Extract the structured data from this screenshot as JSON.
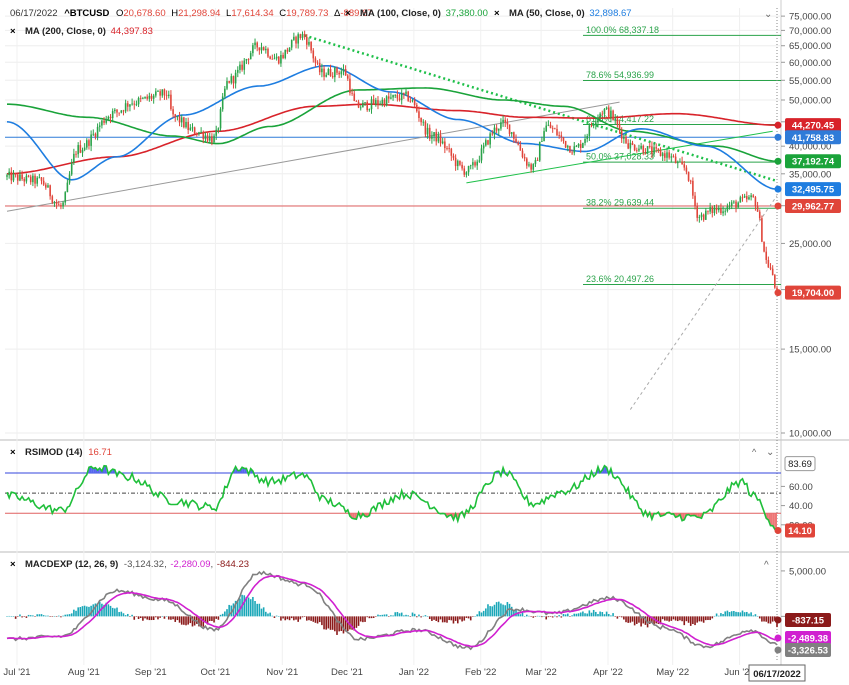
{
  "header": {
    "date": "06/17/2022",
    "symbol": "^BTCUSD",
    "open_label": "O",
    "open": "20,678.60",
    "high_label": "H",
    "high": "21,298.94",
    "low_label": "L",
    "low": "17,614.34",
    "close_label": "C",
    "close": "19,789.73",
    "change_label": "Δ",
    "change": "-889.67",
    "ma100_label": "MA (100, Close, 0)",
    "ma100_value": "37,380.00",
    "ma50_label": "MA (50, Close, 0)",
    "ma50_value": "32,898.67",
    "ma200_label": "MA (200, Close, 0)",
    "ma200_value": "44,397.83"
  },
  "colors": {
    "up": "#2aa34a",
    "down": "#e0453a",
    "ma200": "#d8232a",
    "ma100": "#1aa33a",
    "ma50": "#1e7de0",
    "fib": "#2aa34a",
    "trend": "#1fc04a",
    "rsi": "#1fbf3a",
    "macd_line": "#808080",
    "signal_line": "#d020d0",
    "hist_up": "#1aa7b8",
    "hist_down": "#8b1a1a",
    "hline_blue": "#2f7bd8",
    "hline_red": "#e06060"
  },
  "price_axis": {
    "ticks": [
      "75,000.00",
      "70,000.00",
      "65,000.00",
      "60,000.00",
      "55,000.00",
      "50,000.00",
      "45,000.00",
      "40,000.00",
      "35,000.00",
      "30,000.00",
      "25,000.00",
      "20,000.00",
      "15,000.00",
      "10,000.00"
    ],
    "tick_values": [
      75000,
      70000,
      65000,
      60000,
      55000,
      50000,
      45000,
      40000,
      35000,
      30000,
      25000,
      20000,
      15000,
      10000
    ],
    "scale": "log"
  },
  "fibonacci": [
    {
      "label": "100.0% 68,337.18",
      "value": 68337.18
    },
    {
      "label": "78.6% 54,936.99",
      "value": 54936.99
    },
    {
      "label": "61.8% 44,417.22",
      "value": 44417.22
    },
    {
      "label": "50.0% 37,028.33",
      "value": 37028.33
    },
    {
      "label": "38.2% 29,639.44",
      "value": 29639.44
    },
    {
      "label": "23.6% 20,497.26",
      "value": 20497.26
    }
  ],
  "price_badges": [
    {
      "text": "44,270.45",
      "value": 44270.45,
      "color": "#d8232a"
    },
    {
      "text": "41,758.83",
      "value": 41758.83,
      "color": "#2f7bd8"
    },
    {
      "text": "37,192.74",
      "value": 37192.74,
      "color": "#1aa33a"
    },
    {
      "text": "32,495.75",
      "value": 32495.75,
      "color": "#1e7de0"
    },
    {
      "text": "29,962.77",
      "value": 29962.77,
      "color": "#e0453a"
    },
    {
      "text": "19,704.00",
      "value": 19704.0,
      "color": "#e0453a"
    }
  ],
  "rsi": {
    "label": "RSIMOD (14)",
    "value": "16.71",
    "ticks": [
      "83.69",
      "60.00",
      "40.00",
      "20.00"
    ],
    "tick_values": [
      83.69,
      60,
      40,
      20
    ],
    "upper": 74,
    "lower": 32,
    "mid": 53,
    "badge": "14.10"
  },
  "macd": {
    "label": "MACDEXP (12, 26, 9)",
    "macd": "-3,124.32",
    "signal": "-2,280.09",
    "hist": "-844.23",
    "ticks": [
      "5,000.00",
      "0.00"
    ],
    "tick_values": [
      5000,
      0
    ],
    "badges": [
      {
        "text": "-837.15",
        "value": -837.15,
        "color": "#8b1a1a"
      },
      {
        "text": "-2,489.38",
        "value": -2489.38,
        "color": "#d020d0"
      },
      {
        "text": "-3,326.53",
        "value": -3326.53,
        "color": "#808080"
      }
    ]
  },
  "time_axis": {
    "labels": [
      "Jul '21",
      "Aug '21",
      "Sep '21",
      "Oct '21",
      "Nov '21",
      "Dec '21",
      "Jan '22",
      "Feb '22",
      "Mar '22",
      "Apr '22",
      "May '22",
      "Jun '22"
    ],
    "positions": [
      0,
      31,
      62,
      92,
      123,
      153,
      184,
      215,
      243,
      274,
      304,
      335
    ],
    "current_date": "06/17/2022",
    "current_index": 351
  },
  "chart_data": {
    "type": "candlestick",
    "title": "^BTCUSD",
    "scale": "log",
    "ylim": [
      10000,
      78000
    ],
    "x_range": [
      "2021-06-25",
      "2022-06-17"
    ],
    "anchors": [
      {
        "date": "2021-06-25",
        "price": 34500
      },
      {
        "date": "2021-07-10",
        "price": 33800
      },
      {
        "date": "2021-07-20",
        "price": 29800
      },
      {
        "date": "2021-07-28",
        "price": 39500
      },
      {
        "date": "2021-08-14",
        "price": 47000
      },
      {
        "date": "2021-08-22",
        "price": 49500
      },
      {
        "date": "2021-09-07",
        "price": 51500
      },
      {
        "date": "2021-09-10",
        "price": 46000
      },
      {
        "date": "2021-09-20",
        "price": 43000
      },
      {
        "date": "2021-09-29",
        "price": 41500
      },
      {
        "date": "2021-10-06",
        "price": 55000
      },
      {
        "date": "2021-10-20",
        "price": 65000
      },
      {
        "date": "2021-10-28",
        "price": 61000
      },
      {
        "date": "2021-11-09",
        "price": 68300
      },
      {
        "date": "2021-11-18",
        "price": 57000
      },
      {
        "date": "2021-11-28",
        "price": 57500
      },
      {
        "date": "2021-12-04",
        "price": 48500
      },
      {
        "date": "2021-12-27",
        "price": 50800
      },
      {
        "date": "2022-01-08",
        "price": 42000
      },
      {
        "date": "2022-01-24",
        "price": 35500
      },
      {
        "date": "2022-02-10",
        "price": 44500
      },
      {
        "date": "2022-02-24",
        "price": 36000
      },
      {
        "date": "2022-03-02",
        "price": 44000
      },
      {
        "date": "2022-03-15",
        "price": 39500
      },
      {
        "date": "2022-03-29",
        "price": 47500
      },
      {
        "date": "2022-04-11",
        "price": 40000
      },
      {
        "date": "2022-04-26",
        "price": 38500
      },
      {
        "date": "2022-05-05",
        "price": 36000
      },
      {
        "date": "2022-05-12",
        "price": 28500
      },
      {
        "date": "2022-05-20",
        "price": 29500
      },
      {
        "date": "2022-06-06",
        "price": 31000
      },
      {
        "date": "2022-06-13",
        "price": 22500
      },
      {
        "date": "2022-06-17",
        "price": 19789.73
      }
    ],
    "ma200_anchors": [
      {
        "date": "2021-06-25",
        "value": 35000
      },
      {
        "date": "2021-08-15",
        "value": 38000
      },
      {
        "date": "2021-10-01",
        "value": 43000
      },
      {
        "date": "2021-11-15",
        "value": 48500
      },
      {
        "date": "2021-12-10",
        "value": 49000
      },
      {
        "date": "2022-01-20",
        "value": 47500
      },
      {
        "date": "2022-02-20",
        "value": 46000
      },
      {
        "date": "2022-03-25",
        "value": 45800
      },
      {
        "date": "2022-05-01",
        "value": 46800
      },
      {
        "date": "2022-06-17",
        "value": 44270
      }
    ],
    "ma100_anchors": [
      {
        "date": "2021-06-25",
        "value": 49000
      },
      {
        "date": "2021-08-01",
        "value": 46000
      },
      {
        "date": "2021-09-10",
        "value": 42000
      },
      {
        "date": "2021-10-01",
        "value": 40500
      },
      {
        "date": "2021-10-25",
        "value": 44000
      },
      {
        "date": "2021-12-05",
        "value": 52500
      },
      {
        "date": "2022-01-05",
        "value": 53000
      },
      {
        "date": "2022-02-10",
        "value": 50000
      },
      {
        "date": "2022-03-10",
        "value": 48500
      },
      {
        "date": "2022-04-10",
        "value": 43000
      },
      {
        "date": "2022-05-20",
        "value": 40000
      },
      {
        "date": "2022-06-17",
        "value": 37192
      }
    ],
    "ma50_anchors": [
      {
        "date": "2021-06-25",
        "value": 45000
      },
      {
        "date": "2021-07-25",
        "value": 34000
      },
      {
        "date": "2021-08-15",
        "value": 38000
      },
      {
        "date": "2021-09-15",
        "value": 46500
      },
      {
        "date": "2021-10-20",
        "value": 53500
      },
      {
        "date": "2021-11-20",
        "value": 59000
      },
      {
        "date": "2021-12-20",
        "value": 52000
      },
      {
        "date": "2022-01-20",
        "value": 45500
      },
      {
        "date": "2022-02-20",
        "value": 40500
      },
      {
        "date": "2022-03-20",
        "value": 39000
      },
      {
        "date": "2022-04-15",
        "value": 43500
      },
      {
        "date": "2022-05-15",
        "value": 40000
      },
      {
        "date": "2022-06-17",
        "value": 32496
      }
    ],
    "horizontal_lines": [
      {
        "value": 41758.83,
        "color": "#2f7bd8"
      },
      {
        "value": 29962.77,
        "color": "#e06060"
      }
    ],
    "rsi_anchors": [
      {
        "date": "2021-06-25",
        "value": 50
      },
      {
        "date": "2021-07-20",
        "value": 35
      },
      {
        "date": "2021-08-05",
        "value": 80
      },
      {
        "date": "2021-08-20",
        "value": 70
      },
      {
        "date": "2021-09-10",
        "value": 45
      },
      {
        "date": "2021-09-29",
        "value": 38
      },
      {
        "date": "2021-10-10",
        "value": 80
      },
      {
        "date": "2021-10-25",
        "value": 65
      },
      {
        "date": "2021-11-09",
        "value": 72
      },
      {
        "date": "2021-11-20",
        "value": 45
      },
      {
        "date": "2021-12-04",
        "value": 30
      },
      {
        "date": "2021-12-27",
        "value": 52
      },
      {
        "date": "2022-01-20",
        "value": 28
      },
      {
        "date": "2022-02-10",
        "value": 75
      },
      {
        "date": "2022-02-24",
        "value": 42
      },
      {
        "date": "2022-03-10",
        "value": 55
      },
      {
        "date": "2022-03-29",
        "value": 78
      },
      {
        "date": "2022-04-20",
        "value": 30
      },
      {
        "date": "2022-05-12",
        "value": 28
      },
      {
        "date": "2022-06-01",
        "value": 65
      },
      {
        "date": "2022-06-06",
        "value": 50
      },
      {
        "date": "2022-06-17",
        "value": 16.71
      }
    ],
    "macd_anchors": [
      {
        "date": "2021-06-25",
        "value": -2500
      },
      {
        "date": "2021-07-20",
        "value": -2200
      },
      {
        "date": "2021-08-15",
        "value": 2800
      },
      {
        "date": "2021-09-05",
        "value": 1800
      },
      {
        "date": "2021-09-29",
        "value": -1500
      },
      {
        "date": "2021-10-20",
        "value": 4800
      },
      {
        "date": "2021-11-10",
        "value": 3500
      },
      {
        "date": "2021-12-05",
        "value": -2500
      },
      {
        "date": "2022-01-01",
        "value": -1500
      },
      {
        "date": "2022-01-25",
        "value": -3500
      },
      {
        "date": "2022-02-15",
        "value": 800
      },
      {
        "date": "2022-03-05",
        "value": 300
      },
      {
        "date": "2022-04-01",
        "value": 2000
      },
      {
        "date": "2022-04-25",
        "value": -1200
      },
      {
        "date": "2022-05-15",
        "value": -3300
      },
      {
        "date": "2022-06-05",
        "value": -1500
      },
      {
        "date": "2022-06-17",
        "value": -3124.32
      }
    ]
  }
}
